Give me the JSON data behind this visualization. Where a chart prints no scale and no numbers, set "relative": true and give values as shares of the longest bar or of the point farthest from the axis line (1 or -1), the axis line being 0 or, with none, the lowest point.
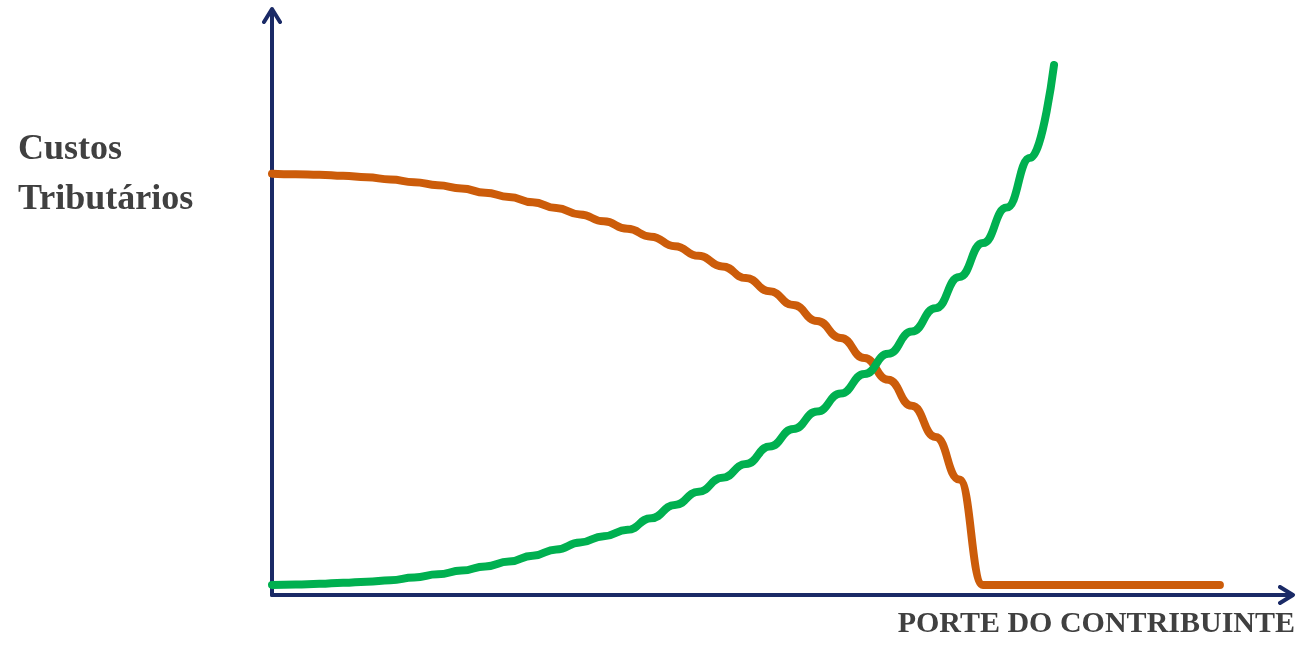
{
  "chart_data": {
    "type": "line",
    "relative": true,
    "xlabel": "PORTE DO CONTRIBUINTE",
    "ylabel": "Custos Tributários",
    "grid": false,
    "line_style": "solid",
    "categories": [
      null,
      null,
      null,
      null,
      null,
      null,
      null,
      null,
      null,
      null,
      null,
      null,
      null,
      null,
      null,
      null,
      null,
      null,
      null,
      null,
      null,
      null,
      null,
      null,
      null,
      null,
      null,
      null,
      null,
      null,
      null,
      null,
      null,
      null,
      null,
      null,
      null,
      null,
      null,
      null,
      null,
      null,
      null,
      null
    ],
    "series": [
      {
        "color": "#cc5c0a",
        "values": [
          0.795,
          0.794,
          0.793,
          0.791,
          0.788,
          0.784,
          0.779,
          0.773,
          0.767,
          0.759,
          0.751,
          0.741,
          0.73,
          0.718,
          0.705,
          0.691,
          0.676,
          0.658,
          0.64,
          0.62,
          0.598,
          0.573,
          0.547,
          0.517,
          0.485,
          0.447,
          0.406,
          0.357,
          0.298,
          0.218,
          0.019,
          0.019,
          0.019,
          0.019,
          0.019,
          0.019,
          0.019,
          0.019,
          0.019,
          0.019,
          0.019,
          null,
          null,
          null
        ]
      },
      {
        "color": "#00b050",
        "values": [
          0.019,
          0.02,
          0.021,
          0.023,
          0.025,
          0.028,
          0.033,
          0.039,
          0.046,
          0.054,
          0.063,
          0.074,
          0.086,
          0.099,
          0.111,
          0.123,
          0.145,
          0.17,
          0.195,
          0.221,
          0.247,
          0.28,
          0.313,
          0.346,
          0.38,
          0.417,
          0.455,
          0.497,
          0.541,
          0.6,
          0.664,
          0.731,
          0.825,
          1.0,
          null,
          null,
          null,
          null,
          null,
          null,
          null,
          null,
          null,
          null
        ]
      }
    ]
  }
}
